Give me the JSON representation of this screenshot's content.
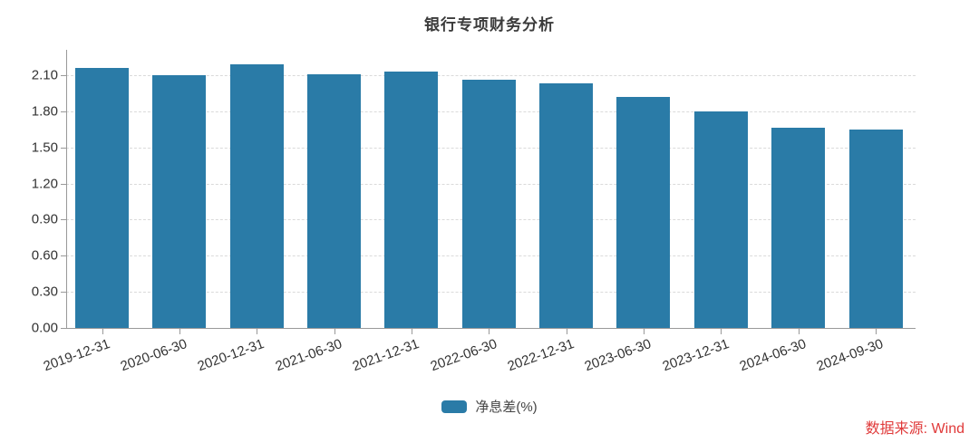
{
  "chart_data": {
    "type": "bar",
    "title": "银行专项财务分析",
    "categories": [
      "2019-12-31",
      "2020-06-30",
      "2020-12-31",
      "2021-06-30",
      "2021-12-31",
      "2022-06-30",
      "2022-12-31",
      "2023-06-30",
      "2023-12-31",
      "2024-06-30",
      "2024-09-30"
    ],
    "series": [
      {
        "name": "净息差(%)",
        "values": [
          2.16,
          2.1,
          2.19,
          2.11,
          2.13,
          2.06,
          2.03,
          1.92,
          1.8,
          1.66,
          1.65
        ],
        "color": "#2a7ba7"
      }
    ],
    "xlabel": "",
    "ylabel": "",
    "ylim": [
      0,
      2.31
    ],
    "yticks": [
      "0.00",
      "0.30",
      "0.60",
      "0.90",
      "1.20",
      "1.50",
      "1.80",
      "2.10"
    ],
    "grid": true,
    "gridline_style": "dashed",
    "legend_position": "bottom-center",
    "xlabel_rotation_deg": -20
  },
  "legend": {
    "label": "净息差(%)",
    "swatch_color": "#2a7ba7"
  },
  "source": {
    "text": "数据来源: Wind",
    "color": "#e03a3a"
  },
  "colors": {
    "bar": "#2a7ba7",
    "axis": "#999999",
    "gridline": "#dadada",
    "text": "#333333",
    "title": "#3b3b3b",
    "background": "#ffffff"
  }
}
